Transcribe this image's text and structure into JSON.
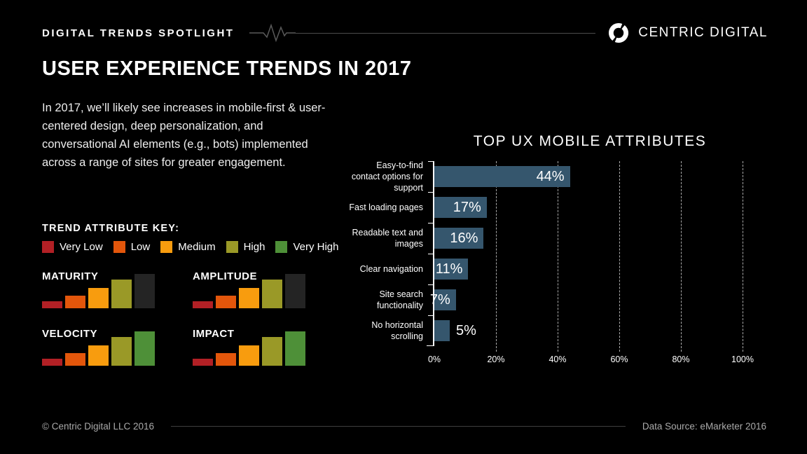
{
  "colors": {
    "background": "#000000",
    "bar_blue": "#35566d",
    "inactive_bar": "#242424",
    "line_gray": "#4c4c4c"
  },
  "header": {
    "eyebrow": "DIGITAL TRENDS SPOTLIGHT",
    "brand": "CENTRIC DIGITAL"
  },
  "title": "USER EXPERIENCE TRENDS IN 2017",
  "intro": "In 2017, we’ll likely see increases in mobile-first & user-centered design, deep personalization, and conversational AI elements (e.g., bots) implemented across a range of sites for greater engagement.",
  "legend": {
    "heading": "TREND ATTRIBUTE KEY:",
    "items": [
      {
        "label": "Very Low",
        "color": "#b22025"
      },
      {
        "label": "Low",
        "color": "#e3560b"
      },
      {
        "label": "Medium",
        "color": "#f89c0e"
      },
      {
        "label": "High",
        "color": "#9a9927"
      },
      {
        "label": "Very High",
        "color": "#4e9038"
      }
    ]
  },
  "trend_attributes": [
    {
      "name": "MATURITY",
      "level": 4,
      "rating": "High"
    },
    {
      "name": "AMPLITUDE",
      "level": 4,
      "rating": "High"
    },
    {
      "name": "VELOCITY",
      "level": 5,
      "rating": "Very High"
    },
    {
      "name": "IMPACT",
      "level": 5,
      "rating": "Very High"
    }
  ],
  "chart_data": {
    "type": "bar",
    "orientation": "horizontal",
    "title": "TOP UX MOBILE ATTRIBUTES",
    "categories": [
      "Easy-to-find contact options for support",
      "Fast loading pages",
      "Readable text and images",
      "Clear navigation",
      "Site search functionality",
      "No horizontal scrolling"
    ],
    "values": [
      44,
      17,
      16,
      11,
      7,
      5
    ],
    "value_labels": [
      "44%",
      "17%",
      "16%",
      "11%",
      "7%",
      "5%"
    ],
    "x_ticks": [
      "0%",
      "20%",
      "40%",
      "60%",
      "80%",
      "100%"
    ],
    "xlim": [
      0,
      100
    ],
    "bar_color": "#35566d",
    "grid": "dashed-vertical",
    "legend_position": "none"
  },
  "footer": {
    "copyright": "© Centric Digital LLC 2016",
    "source": "Data Source: eMarketer 2016"
  }
}
